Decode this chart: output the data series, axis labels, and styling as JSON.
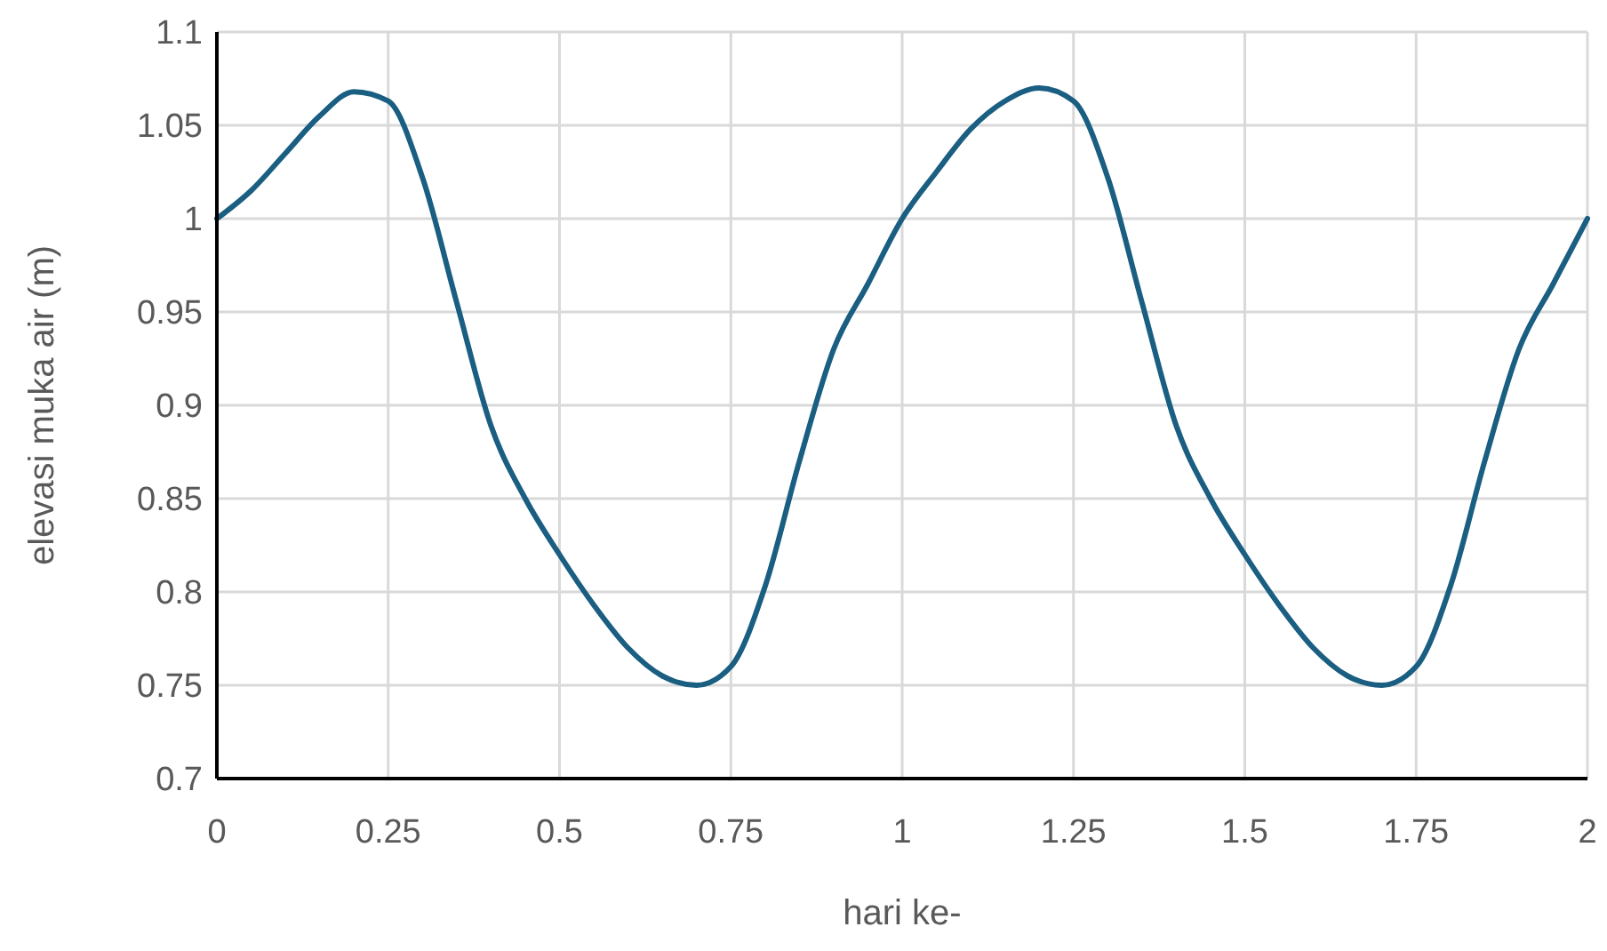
{
  "chart_data": {
    "type": "line",
    "xlabel": "hari ke-",
    "ylabel": "elevasi muka air (m)",
    "xlim": [
      0,
      2
    ],
    "xticks": [
      0,
      0.25,
      0.5,
      0.75,
      1,
      1.25,
      1.5,
      1.75,
      2
    ],
    "ylim": [
      0.7,
      1.1
    ],
    "yticks": [
      0.7,
      0.75,
      0.8,
      0.85,
      0.9,
      0.95,
      1,
      1.05,
      1.1
    ],
    "grid": true,
    "marker": "none",
    "line_style": "solid",
    "x": [
      0,
      0.05,
      0.1,
      0.15,
      0.2,
      0.25,
      0.3,
      0.35,
      0.4,
      0.45,
      0.5,
      0.55,
      0.6,
      0.65,
      0.7,
      0.75,
      0.8,
      0.85,
      0.9,
      0.95,
      1,
      1.05,
      1.1,
      1.15,
      1.2,
      1.25,
      1.3,
      1.35,
      1.4,
      1.45,
      1.5,
      1.55,
      1.6,
      1.65,
      1.7,
      1.75,
      1.8,
      1.85,
      1.9,
      1.95,
      2
    ],
    "series": [
      {
        "color": "#1a5e82",
        "values": [
          1,
          1.015,
          1.035,
          1.055,
          1.068,
          1.063,
          1.022,
          0.955,
          0.889,
          0.85,
          0.82,
          0.793,
          0.77,
          0.755,
          0.75,
          0.76,
          0.803,
          0.87,
          0.93,
          0.965,
          1,
          1.025,
          1.048,
          1.063,
          1.07,
          1.063,
          1.022,
          0.955,
          0.889,
          0.85,
          0.82,
          0.793,
          0.77,
          0.755,
          0.75,
          0.76,
          0.803,
          0.87,
          0.93,
          0.965,
          1
        ]
      }
    ]
  }
}
